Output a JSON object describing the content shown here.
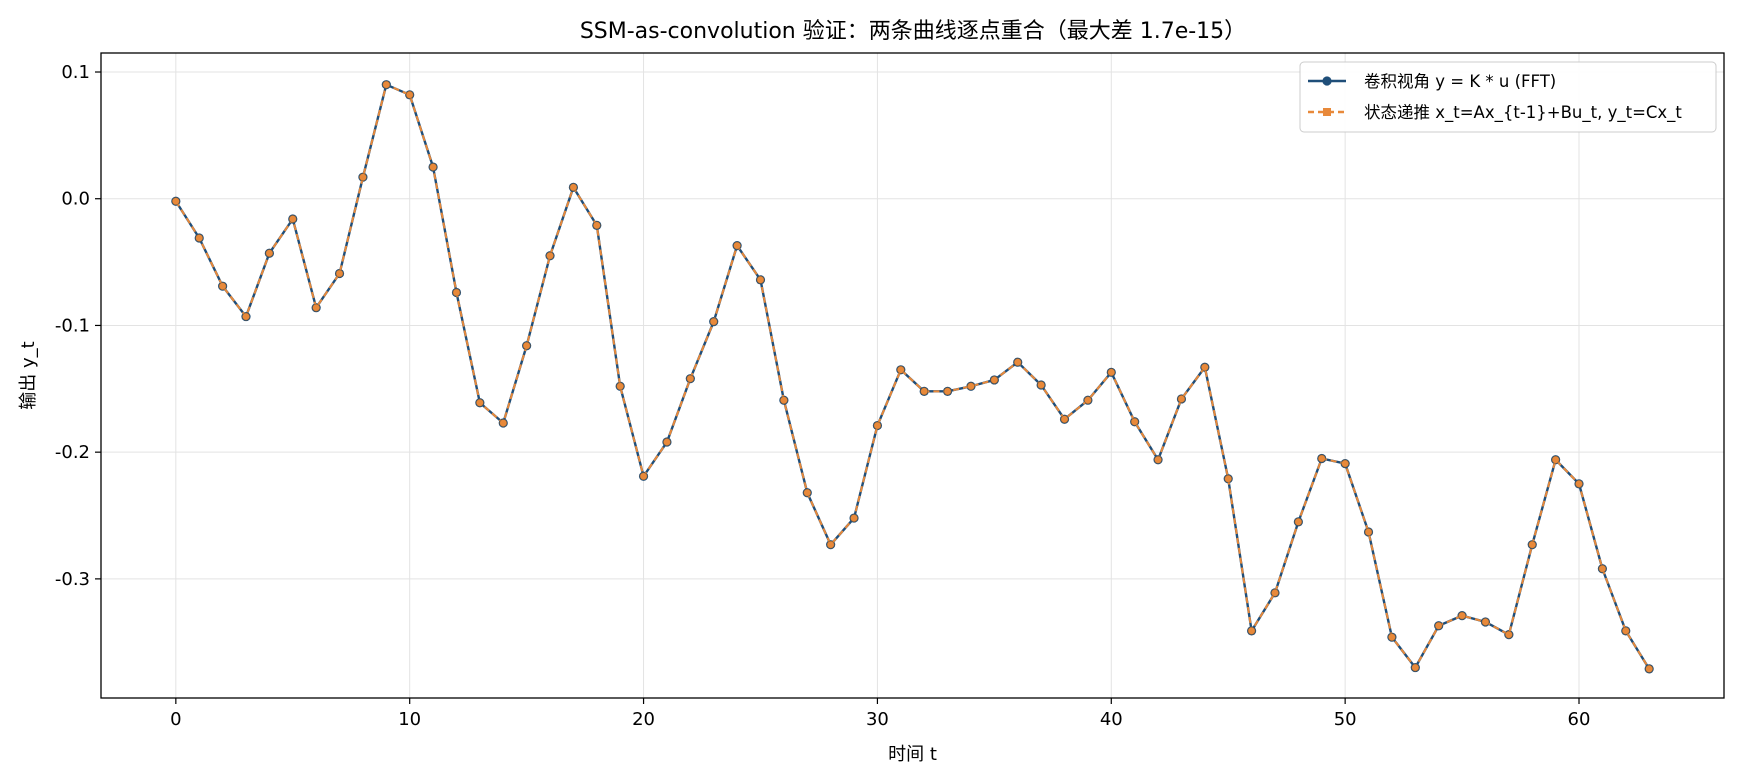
{
  "chart_data": {
    "type": "line",
    "title": "SSM-as-convolution 验证：两条曲线逐点重合（最大差 1.7e-15）",
    "xlabel": "时间 t",
    "ylabel": "输出 y_t",
    "xlim": [
      -3.2,
      66.2
    ],
    "ylim": [
      -0.394,
      0.115
    ],
    "xticks": [
      0,
      10,
      20,
      30,
      40,
      50,
      60
    ],
    "xtick_labels": [
      "0",
      "10",
      "20",
      "30",
      "40",
      "50",
      "60"
    ],
    "yticks": [
      0.1,
      0.0,
      -0.1,
      -0.2,
      -0.3
    ],
    "ytick_labels": [
      "0.1",
      "0.0",
      "-0.1",
      "-0.2",
      "-0.3"
    ],
    "grid": true,
    "legend_position": "top-right",
    "x": [
      0,
      1,
      2,
      3,
      4,
      5,
      6,
      7,
      8,
      9,
      10,
      11,
      12,
      13,
      14,
      15,
      16,
      17,
      18,
      19,
      20,
      21,
      22,
      23,
      24,
      25,
      26,
      27,
      28,
      29,
      30,
      31,
      32,
      33,
      34,
      35,
      36,
      37,
      38,
      39,
      40,
      41,
      42,
      43,
      44,
      45,
      46,
      47,
      48,
      49,
      50,
      51,
      52,
      53,
      54,
      55,
      56,
      57,
      58,
      59,
      60,
      61,
      62,
      63
    ],
    "series": [
      {
        "name": "卷积视角  y = K * u (FFT)",
        "color": "#1f4e79",
        "style": "solid-circle",
        "values": [
          -0.002,
          -0.031,
          -0.069,
          -0.093,
          -0.043,
          -0.016,
          -0.086,
          -0.059,
          0.017,
          0.09,
          0.082,
          0.025,
          -0.074,
          -0.161,
          -0.177,
          -0.116,
          -0.045,
          0.009,
          -0.021,
          -0.148,
          -0.219,
          -0.192,
          -0.142,
          -0.097,
          -0.037,
          -0.064,
          -0.159,
          -0.232,
          -0.273,
          -0.252,
          -0.179,
          -0.135,
          -0.152,
          -0.152,
          -0.148,
          -0.143,
          -0.129,
          -0.147,
          -0.174,
          -0.159,
          -0.137,
          -0.176,
          -0.206,
          -0.158,
          -0.133,
          -0.221,
          -0.341,
          -0.311,
          -0.255,
          -0.205,
          -0.209,
          -0.263,
          -0.346,
          -0.37,
          -0.337,
          -0.329,
          -0.334,
          -0.344,
          -0.273,
          -0.206,
          -0.225,
          -0.292,
          -0.341,
          -0.371
        ]
      },
      {
        "name": "状态递推  x_t=Ax_{t-1}+Bu_t, y_t=Cx_t",
        "color": "#e8893a",
        "style": "dashed-square",
        "values": [
          -0.002,
          -0.031,
          -0.069,
          -0.093,
          -0.043,
          -0.016,
          -0.086,
          -0.059,
          0.017,
          0.09,
          0.082,
          0.025,
          -0.074,
          -0.161,
          -0.177,
          -0.116,
          -0.045,
          0.009,
          -0.021,
          -0.148,
          -0.219,
          -0.192,
          -0.142,
          -0.097,
          -0.037,
          -0.064,
          -0.159,
          -0.232,
          -0.273,
          -0.252,
          -0.179,
          -0.135,
          -0.152,
          -0.152,
          -0.148,
          -0.143,
          -0.129,
          -0.147,
          -0.174,
          -0.159,
          -0.137,
          -0.176,
          -0.206,
          -0.158,
          -0.133,
          -0.221,
          -0.341,
          -0.311,
          -0.255,
          -0.205,
          -0.209,
          -0.263,
          -0.346,
          -0.37,
          -0.337,
          -0.329,
          -0.334,
          -0.344,
          -0.273,
          -0.206,
          -0.225,
          -0.292,
          -0.341,
          -0.371
        ]
      }
    ]
  }
}
